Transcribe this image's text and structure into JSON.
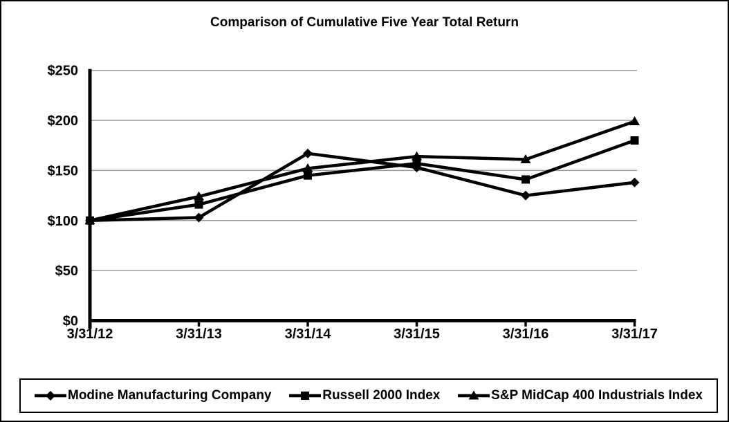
{
  "window": {
    "background_color": "#ffffff",
    "frame_border_color": "#000000"
  },
  "chart_data": {
    "type": "line",
    "title": "Comparison of Cumulative Five Year Total Return",
    "categories": [
      "3/31/12",
      "3/31/13",
      "3/31/14",
      "3/31/15",
      "3/31/16",
      "3/31/17"
    ],
    "series": [
      {
        "name": "Modine Manufacturing Company",
        "marker": "diamond",
        "color": "#000000",
        "values": [
          100,
          103,
          167,
          153,
          125,
          138
        ]
      },
      {
        "name": "Russell 2000 Index",
        "marker": "square",
        "color": "#000000",
        "values": [
          100,
          116,
          145,
          157,
          141,
          180
        ]
      },
      {
        "name": "S&P MidCap 400 Industrials Index",
        "marker": "triangle",
        "color": "#000000",
        "values": [
          100,
          124,
          152,
          164,
          161,
          199
        ]
      }
    ],
    "xlabel": "",
    "ylabel": "",
    "ylim": [
      0,
      250
    ],
    "ytick_interval": 50,
    "ytick_labels": [
      "$0",
      "$50",
      "$100",
      "$150",
      "$200",
      "$250"
    ],
    "grid": "horizontal",
    "gridline_color": "#999999",
    "axis_color": "#000000",
    "legend_position": "bottom-boxed"
  }
}
